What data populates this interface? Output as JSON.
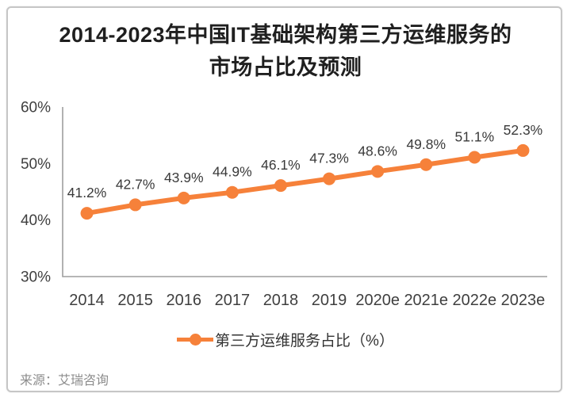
{
  "title": {
    "line1": "2014-2023年中国IT基础架构第三方运维服务的",
    "line2": "市场占比及预测"
  },
  "legend": {
    "label": "第三方运维服务占比（%）"
  },
  "source": {
    "label": "来源：艾瑞咨询"
  },
  "colors": {
    "accent_orange": "#f6813a",
    "axis_gray": "#9e9e9e",
    "tick_text": "#3f3f3f",
    "data_label_text": "#3a3a3a",
    "title_text": "#1f1f1f",
    "legend_text": "#333333",
    "source_text": "#8c8c8c",
    "card_border": "#c6c6c6"
  },
  "chart_data": {
    "type": "line",
    "title": "2014-2023年中国IT基础架构第三方运维服务的市场占比及预测",
    "xlabel": "",
    "ylabel": "",
    "categories": [
      "2014",
      "2015",
      "2016",
      "2017",
      "2018",
      "2019",
      "2020e",
      "2021e",
      "2022e",
      "2023e"
    ],
    "series": [
      {
        "name": "第三方运维服务占比（%）",
        "color": "#f6813a",
        "values": [
          41.2,
          42.7,
          43.9,
          44.9,
          46.1,
          47.3,
          48.6,
          49.8,
          51.1,
          52.3
        ]
      }
    ],
    "data_labels": [
      "41.2%",
      "42.7%",
      "43.9%",
      "44.9%",
      "46.1%",
      "47.3%",
      "48.6%",
      "49.8%",
      "51.1%",
      "52.3%"
    ],
    "ylim": [
      30,
      60
    ],
    "yticks": [
      {
        "value": 30,
        "label": "30%"
      },
      {
        "value": 40,
        "label": "40%"
      },
      {
        "value": 50,
        "label": "50%"
      },
      {
        "value": 60,
        "label": "60%"
      }
    ],
    "grid": false,
    "legend_position": "bottom",
    "source": "来源：艾瑞咨询"
  }
}
